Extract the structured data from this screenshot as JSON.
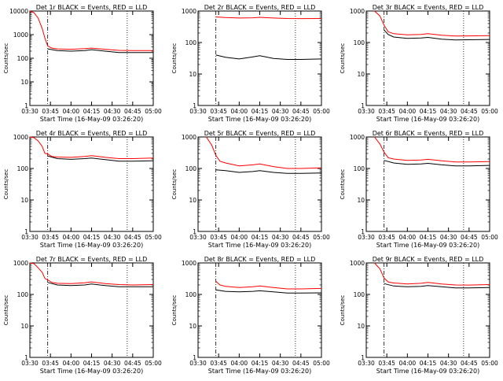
{
  "figure": {
    "start_label": "Start Time (16-May-09 03:26:20)",
    "ylabel": "Counts/sec",
    "colors": {
      "events": "#000000",
      "lld": "#ff0000",
      "axes": "#000000"
    }
  },
  "chart_data": [
    {
      "type": "line",
      "title": "Det 1r BLACK = Events, RED = LLD",
      "xlabel": "Start Time (16-May-09 03:26:20)",
      "ylabel": "Counts/sec",
      "y_scale": "log",
      "ylim": [
        1,
        10000
      ],
      "xlim": [
        "03:30",
        "05:00"
      ],
      "x_ticks": [
        "03:30",
        "03:45",
        "04:00",
        "04:15",
        "04:30",
        "04:45",
        "05:00"
      ],
      "y_ticks": [
        "1",
        "10",
        "100",
        "1000",
        "10000"
      ],
      "vlines": [
        "03:43",
        "04:41",
        "05:00"
      ],
      "series": [
        {
          "name": "Events",
          "x": [
            "03:43",
            "03:50",
            "04:00",
            "04:10",
            "04:15",
            "04:25",
            "04:35",
            "04:45",
            "05:00"
          ],
          "y": [
            250,
            210,
            200,
            210,
            230,
            200,
            175,
            175,
            175
          ]
        },
        {
          "name": "LLD",
          "x": [
            "03:30",
            "03:33",
            "03:36",
            "03:39",
            "03:41",
            "03:43",
            "03:46",
            "03:50",
            "04:00",
            "04:10",
            "04:15",
            "04:25",
            "04:35",
            "04:45",
            "05:00"
          ],
          "y": [
            10000,
            8500,
            5000,
            1800,
            700,
            330,
            270,
            250,
            240,
            255,
            270,
            240,
            215,
            210,
            210
          ]
        }
      ]
    },
    {
      "type": "line",
      "title": "Det 2r BLACK = Events, RED = LLD",
      "xlabel": "Start Time (16-May-09 03:26:20)",
      "ylabel": "Counts/sec",
      "y_scale": "log",
      "ylim": [
        1,
        1000
      ],
      "xlim": [
        "03:30",
        "05:00"
      ],
      "x_ticks": [
        "03:30",
        "03:45",
        "04:00",
        "04:15",
        "04:30",
        "04:45",
        "05:00"
      ],
      "y_ticks": [
        "1",
        "10",
        "100",
        "1000"
      ],
      "vlines": [
        "03:43",
        "04:41",
        "05:00"
      ],
      "series": [
        {
          "name": "Events",
          "x": [
            "03:43",
            "03:50",
            "04:00",
            "04:10",
            "04:15",
            "04:25",
            "04:35",
            "04:45",
            "05:00"
          ],
          "y": [
            40,
            34,
            30,
            35,
            38,
            31,
            29,
            29,
            30
          ]
        },
        {
          "name": "LLD",
          "x": [
            "03:43",
            "03:50",
            "04:00",
            "04:10",
            "04:15",
            "04:25",
            "04:35",
            "04:45",
            "05:00"
          ],
          "y": [
            650,
            620,
            600,
            610,
            630,
            600,
            580,
            575,
            580
          ]
        }
      ]
    },
    {
      "type": "line",
      "title": "Det 3r BLACK = Events, RED = LLD",
      "xlabel": "Start Time (16-May-09 03:26:20)",
      "ylabel": "Counts/sec",
      "y_scale": "log",
      "ylim": [
        1,
        1000
      ],
      "xlim": [
        "03:30",
        "05:00"
      ],
      "x_ticks": [
        "03:30",
        "03:45",
        "04:00",
        "04:15",
        "04:30",
        "04:45",
        "05:00"
      ],
      "y_ticks": [
        "1",
        "10",
        "100",
        "1000"
      ],
      "vlines": [
        "03:43",
        "04:41",
        "05:00"
      ],
      "series": [
        {
          "name": "Events",
          "x": [
            "03:43",
            "03:46",
            "03:50",
            "04:00",
            "04:10",
            "04:15",
            "04:25",
            "04:35",
            "04:45",
            "05:00"
          ],
          "y": [
            250,
            180,
            150,
            135,
            140,
            145,
            128,
            120,
            122,
            125
          ]
        },
        {
          "name": "LLD",
          "x": [
            "03:36",
            "03:40",
            "03:43",
            "03:46",
            "03:50",
            "04:00",
            "04:10",
            "04:15",
            "04:25",
            "04:35",
            "04:45",
            "05:00"
          ],
          "y": [
            1000,
            700,
            350,
            220,
            190,
            175,
            180,
            190,
            170,
            160,
            162,
            165
          ]
        }
      ]
    },
    {
      "type": "line",
      "title": "Det 4r BLACK = Events, RED = LLD",
      "xlabel": "Start Time (16-May-09 03:26:20)",
      "ylabel": "Counts/sec",
      "y_scale": "log",
      "ylim": [
        1,
        1000
      ],
      "xlim": [
        "03:30",
        "05:00"
      ],
      "x_ticks": [
        "03:30",
        "03:45",
        "04:00",
        "04:15",
        "04:30",
        "04:45",
        "05:00"
      ],
      "y_ticks": [
        "1",
        "10",
        "100",
        "1000"
      ],
      "vlines": [
        "03:43",
        "04:41",
        "05:00"
      ],
      "series": [
        {
          "name": "Events",
          "x": [
            "03:43",
            "03:50",
            "04:00",
            "04:10",
            "04:15",
            "04:25",
            "04:35",
            "04:45",
            "05:00"
          ],
          "y": [
            250,
            205,
            195,
            205,
            215,
            190,
            170,
            170,
            175
          ]
        },
        {
          "name": "LLD",
          "x": [
            "03:30",
            "03:33",
            "03:36",
            "03:39",
            "03:41",
            "03:43",
            "03:46",
            "03:50",
            "04:00",
            "04:10",
            "04:15",
            "04:25",
            "04:35",
            "04:45",
            "05:00"
          ],
          "y": [
            1000,
            950,
            750,
            500,
            300,
            290,
            240,
            230,
            225,
            240,
            255,
            225,
            205,
            205,
            215
          ]
        }
      ]
    },
    {
      "type": "line",
      "title": "Det 5r BLACK = Events, RED = LLD",
      "xlabel": "Start Time (16-May-09 03:26:20)",
      "ylabel": "Counts/sec",
      "y_scale": "log",
      "ylim": [
        1,
        1000
      ],
      "xlim": [
        "03:30",
        "05:00"
      ],
      "x_ticks": [
        "03:30",
        "03:45",
        "04:00",
        "04:15",
        "04:30",
        "04:45",
        "05:00"
      ],
      "y_ticks": [
        "1",
        "10",
        "100",
        "1000"
      ],
      "vlines": [
        "03:43",
        "04:41",
        "05:00"
      ],
      "series": [
        {
          "name": "Events",
          "x": [
            "03:43",
            "03:50",
            "04:00",
            "04:10",
            "04:15",
            "04:25",
            "04:35",
            "04:45",
            "05:00"
          ],
          "y": [
            90,
            85,
            75,
            80,
            85,
            75,
            70,
            70,
            72
          ]
        },
        {
          "name": "LLD",
          "x": [
            "03:36",
            "03:40",
            "03:43",
            "03:46",
            "03:50",
            "04:00",
            "04:10",
            "04:15",
            "04:25",
            "04:35",
            "04:45",
            "05:00"
          ],
          "y": [
            1000,
            550,
            260,
            170,
            150,
            120,
            130,
            140,
            115,
            100,
            100,
            105
          ]
        }
      ]
    },
    {
      "type": "line",
      "title": "Det 6r BLACK = Events, RED = LLD",
      "xlabel": "Start Time (16-May-09 03:26:20)",
      "ylabel": "Counts/sec",
      "y_scale": "log",
      "ylim": [
        1,
        1000
      ],
      "xlim": [
        "03:30",
        "05:00"
      ],
      "x_ticks": [
        "03:30",
        "03:45",
        "04:00",
        "04:15",
        "04:30",
        "04:45",
        "05:00"
      ],
      "y_ticks": [
        "1",
        "10",
        "100",
        "1000"
      ],
      "vlines": [
        "03:43",
        "04:41",
        "05:00"
      ],
      "series": [
        {
          "name": "Events",
          "x": [
            "03:43",
            "03:50",
            "04:00",
            "04:10",
            "04:15",
            "04:25",
            "04:35",
            "04:45",
            "05:00"
          ],
          "y": [
            180,
            150,
            135,
            140,
            145,
            130,
            120,
            120,
            125
          ]
        },
        {
          "name": "LLD",
          "x": [
            "03:36",
            "03:40",
            "03:43",
            "03:46",
            "03:50",
            "04:00",
            "04:10",
            "04:15",
            "04:25",
            "04:35",
            "04:45",
            "05:00"
          ],
          "y": [
            1000,
            600,
            330,
            220,
            200,
            180,
            185,
            195,
            175,
            160,
            160,
            165
          ]
        }
      ]
    },
    {
      "type": "line",
      "title": "Det 7r BLACK = Events, RED = LLD",
      "xlabel": "Start Time (16-May-09 03:26:20)",
      "ylabel": "Counts/sec",
      "y_scale": "log",
      "ylim": [
        1,
        1000
      ],
      "xlim": [
        "03:30",
        "05:00"
      ],
      "x_ticks": [
        "03:30",
        "03:45",
        "04:00",
        "04:15",
        "04:30",
        "04:45",
        "05:00"
      ],
      "y_ticks": [
        "1",
        "10",
        "100",
        "1000"
      ],
      "vlines": [
        "03:43",
        "04:41",
        "05:00"
      ],
      "series": [
        {
          "name": "Events",
          "x": [
            "03:43",
            "03:50",
            "04:00",
            "04:10",
            "04:15",
            "04:25",
            "04:35",
            "04:45",
            "05:00"
          ],
          "y": [
            240,
            200,
            190,
            200,
            215,
            190,
            175,
            175,
            175
          ]
        },
        {
          "name": "LLD",
          "x": [
            "03:30",
            "03:33",
            "03:36",
            "03:39",
            "03:41",
            "03:43",
            "03:46",
            "03:50",
            "04:00",
            "04:10",
            "04:15",
            "04:25",
            "04:35",
            "04:45",
            "05:00"
          ],
          "y": [
            1000,
            950,
            700,
            500,
            320,
            290,
            240,
            225,
            220,
            235,
            250,
            220,
            205,
            200,
            205
          ]
        }
      ]
    },
    {
      "type": "line",
      "title": "Det 8r BLACK = Events, RED = LLD",
      "xlabel": "Start Time (16-May-09 03:26:20)",
      "ylabel": "Counts/sec",
      "y_scale": "log",
      "ylim": [
        1,
        1000
      ],
      "xlim": [
        "03:30",
        "05:00"
      ],
      "x_ticks": [
        "03:30",
        "03:45",
        "04:00",
        "04:15",
        "04:30",
        "04:45",
        "05:00"
      ],
      "y_ticks": [
        "1",
        "10",
        "100",
        "1000"
      ],
      "vlines": [
        "03:43",
        "04:41",
        "05:00"
      ],
      "series": [
        {
          "name": "Events",
          "x": [
            "03:43",
            "03:50",
            "04:00",
            "04:10",
            "04:15",
            "04:25",
            "04:35",
            "04:45",
            "05:00"
          ],
          "y": [
            140,
            125,
            120,
            125,
            130,
            120,
            110,
            110,
            112
          ]
        },
        {
          "name": "LLD",
          "x": [
            "03:43",
            "03:46",
            "03:50",
            "04:00",
            "04:10",
            "04:15",
            "04:25",
            "04:35",
            "04:45",
            "05:00"
          ],
          "y": [
            260,
            200,
            180,
            165,
            175,
            185,
            165,
            150,
            150,
            155
          ]
        }
      ]
    },
    {
      "type": "line",
      "title": "Det 9r BLACK = Events, RED = LLD",
      "xlabel": "Start Time (16-May-09 03:26:20)",
      "ylabel": "Counts/sec",
      "y_scale": "log",
      "ylim": [
        1,
        1000
      ],
      "xlim": [
        "03:30",
        "05:00"
      ],
      "x_ticks": [
        "03:30",
        "03:45",
        "04:00",
        "04:15",
        "04:30",
        "04:45",
        "05:00"
      ],
      "y_ticks": [
        "1",
        "10",
        "100",
        "1000"
      ],
      "vlines": [
        "03:43",
        "04:41",
        "05:00"
      ],
      "series": [
        {
          "name": "Events",
          "x": [
            "03:43",
            "03:50",
            "04:00",
            "04:10",
            "04:15",
            "04:25",
            "04:35",
            "04:45",
            "05:00"
          ],
          "y": [
            220,
            185,
            175,
            180,
            190,
            175,
            160,
            160,
            165
          ]
        },
        {
          "name": "LLD",
          "x": [
            "03:36",
            "03:40",
            "03:43",
            "03:46",
            "03:50",
            "04:00",
            "04:10",
            "04:15",
            "04:25",
            "04:35",
            "04:45",
            "05:00"
          ],
          "y": [
            1000,
            650,
            330,
            250,
            230,
            215,
            225,
            240,
            215,
            200,
            198,
            205
          ]
        }
      ]
    }
  ]
}
